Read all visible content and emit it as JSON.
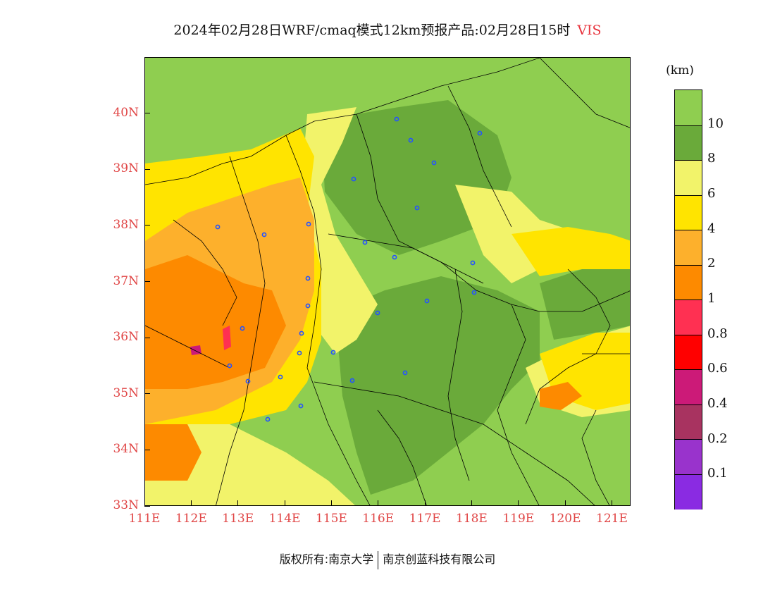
{
  "title": {
    "main": "2024年02月28日WRF/cmaq模式12km预报产品:02月28日15时",
    "variable": "VIS"
  },
  "map": {
    "lon_labels": [
      "111E",
      "112E",
      "113E",
      "114E",
      "115E",
      "116E",
      "117E",
      "118E",
      "119E",
      "120E",
      "121E"
    ],
    "lat_labels": [
      "33N",
      "34N",
      "35N",
      "36N",
      "37N",
      "38N",
      "39N",
      "40N"
    ],
    "lon_range": [
      111,
      121.4
    ],
    "lat_range": [
      33,
      41
    ]
  },
  "colorbar": {
    "unit": "(km)",
    "labels": [
      "10",
      "8",
      "6",
      "4",
      "2",
      "1",
      "0.8",
      "0.6",
      "0.4",
      "0.2",
      "0.1"
    ],
    "colors": [
      "#8fce50",
      "#6aaa3a",
      "#f2f36a",
      "#ffe400",
      "#fdb02c",
      "#fd8a00",
      "#ff3052",
      "#ff0000",
      "#cc1a78",
      "#a83360",
      "#9933cc",
      "#8a2be2"
    ],
    "color_names": [
      ">10",
      "8-10",
      "6-8",
      "4-6",
      "2-4",
      "1-2",
      "0.8-1",
      "0.6-0.8",
      "0.4-0.6",
      "0.2-0.4",
      "0.1-0.2",
      "<0.1"
    ]
  },
  "footer": {
    "left": "版权所有:南京大学",
    "right": "南京创蓝科技有限公司"
  }
}
